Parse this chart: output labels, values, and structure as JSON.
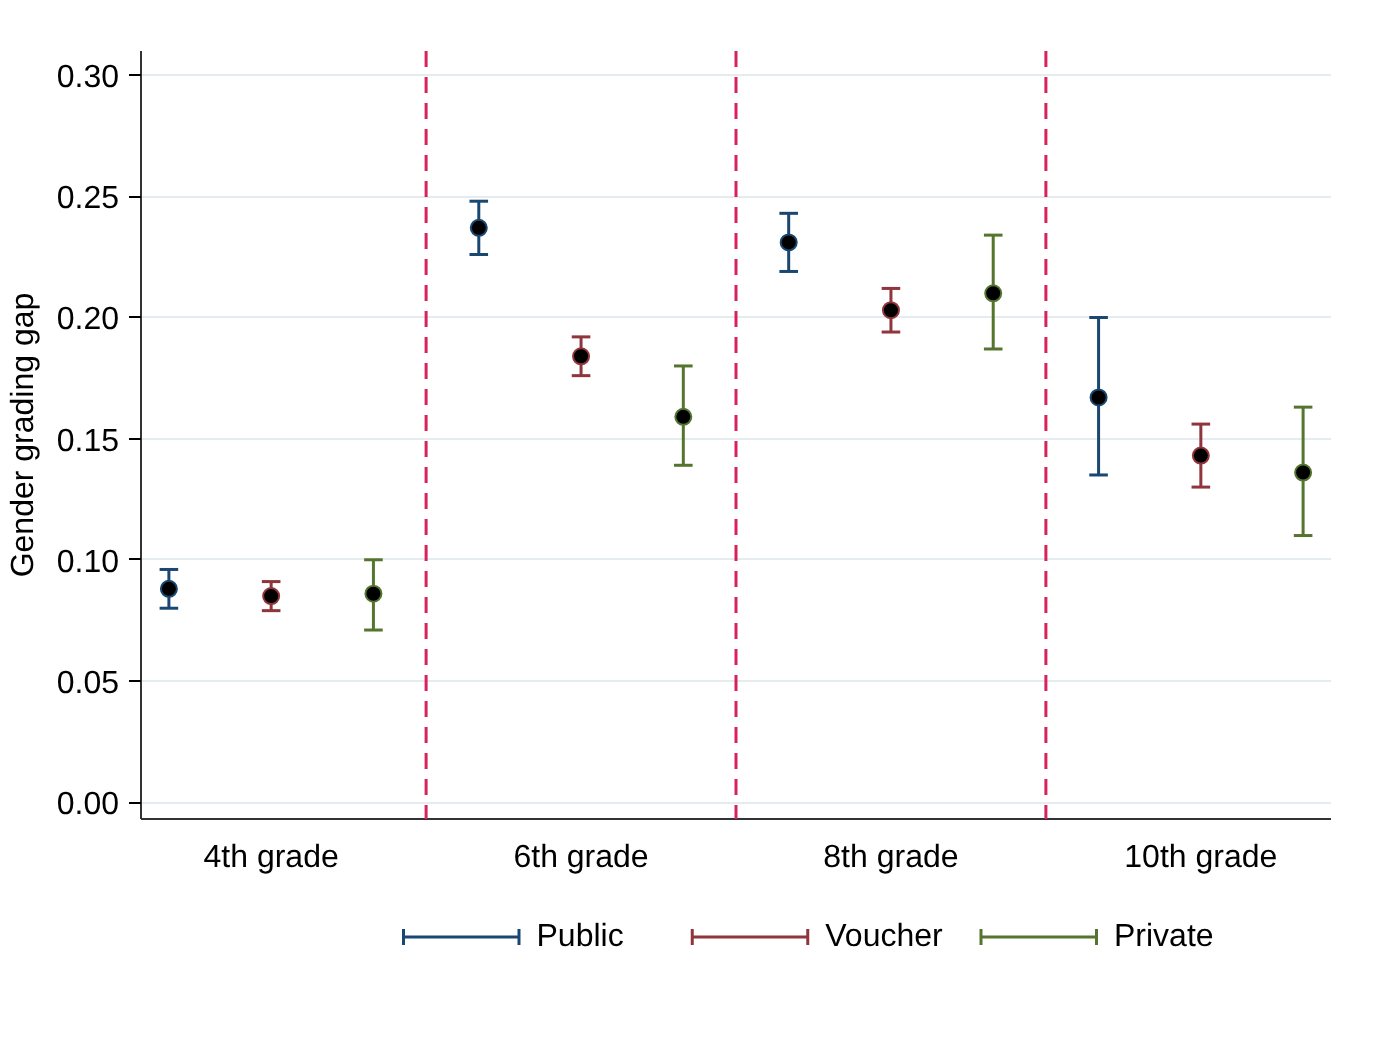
{
  "chart_data": {
    "type": "scatter",
    "ylabel": "Gender grading gap",
    "categories": [
      "4th grade",
      "6th grade",
      "8th grade",
      "10th grade"
    ],
    "ylim": [
      -0.007,
      0.31
    ],
    "yticks": [
      {
        "value": 0,
        "label": "0.00"
      },
      {
        "value": 0.05,
        "label": "0.05"
      },
      {
        "value": 0.1,
        "label": "0.10"
      },
      {
        "value": 0.15,
        "label": "0.15"
      },
      {
        "value": 0.2,
        "label": "0.20"
      },
      {
        "value": 0.25,
        "label": "0.25"
      },
      {
        "value": 0.3,
        "label": "0.30"
      }
    ],
    "series": [
      {
        "name": "Public",
        "color": "#1a476f",
        "values": [
          0.088,
          0.237,
          0.231,
          0.167
        ],
        "errors": [
          [
            0.08,
            0.096
          ],
          [
            0.226,
            0.248
          ],
          [
            0.219,
            0.243
          ],
          [
            0.135,
            0.2
          ]
        ]
      },
      {
        "name": "Voucher",
        "color": "#90353b",
        "values": [
          0.085,
          0.184,
          0.203,
          0.143
        ],
        "errors": [
          [
            0.079,
            0.091
          ],
          [
            0.176,
            0.192
          ],
          [
            0.194,
            0.212
          ],
          [
            0.13,
            0.156
          ]
        ]
      },
      {
        "name": "Private",
        "color": "#55752f",
        "values": [
          0.086,
          0.159,
          0.21,
          0.136
        ],
        "errors": [
          [
            0.071,
            0.1
          ],
          [
            0.139,
            0.18
          ],
          [
            0.187,
            0.234
          ],
          [
            0.11,
            0.163
          ]
        ]
      }
    ],
    "grid": "y",
    "legend": "bottom",
    "marker": "circle"
  }
}
